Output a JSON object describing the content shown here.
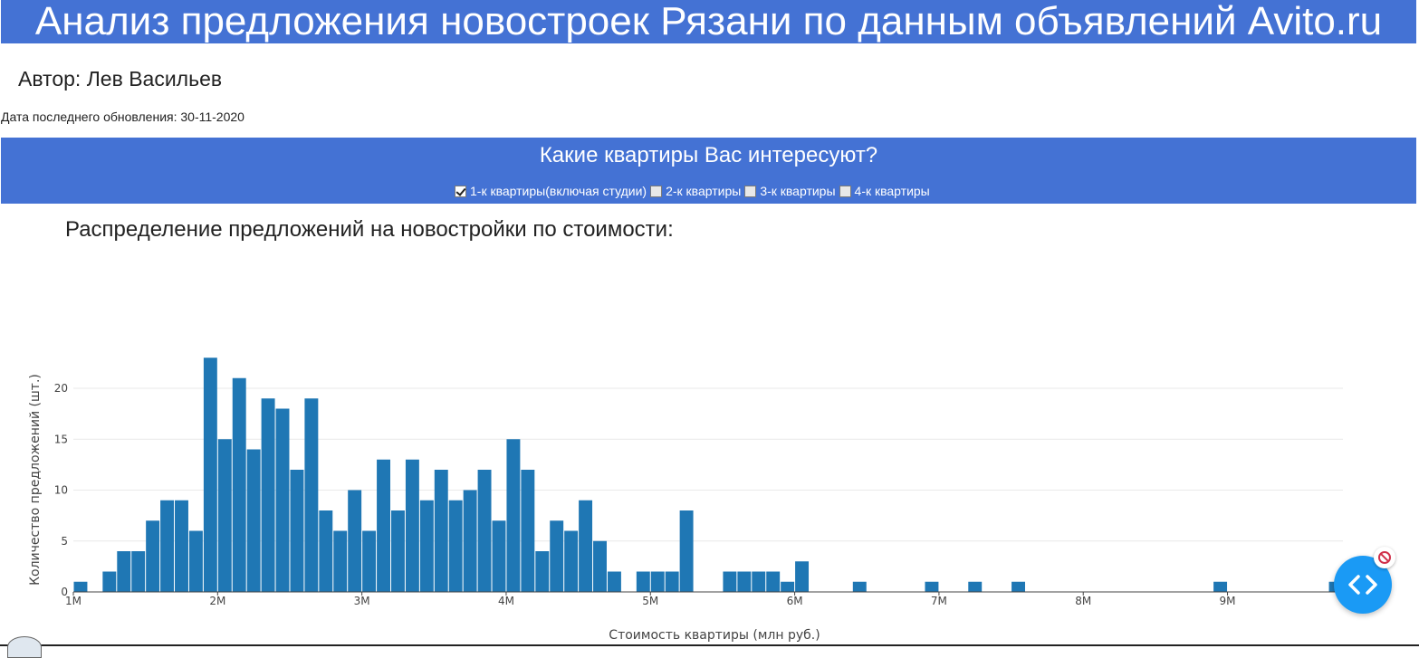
{
  "header": {
    "title": "Анализ предложения новостроек Рязани по данным объявлений Avito.ru"
  },
  "author": "Автор: Лев Васильев",
  "updated": "Дата последнего обновления: 30-11-2020",
  "filter": {
    "question": "Какие квартиры Вас интересуют?",
    "options": [
      {
        "label": "1-к квартиры(включая студии)",
        "checked": true
      },
      {
        "label": "2-к квартиры",
        "checked": false
      },
      {
        "label": "3-к квартиры",
        "checked": false
      },
      {
        "label": "4-к квартиры",
        "checked": false
      }
    ]
  },
  "section": {
    "title": "Распределение предложений на новостройки по стоимости:"
  },
  "chart_data": {
    "type": "bar",
    "xlabel": "Стоимость квартиры (млн руб.)",
    "ylabel": "Количество предложений (шт.)",
    "xlim": [
      1000000,
      9800000
    ],
    "ylim": [
      0,
      24
    ],
    "bin_width": 100000,
    "xticks": [
      {
        "value": 1000000,
        "label": "1M"
      },
      {
        "value": 2000000,
        "label": "2M"
      },
      {
        "value": 3000000,
        "label": "3M"
      },
      {
        "value": 4000000,
        "label": "4M"
      },
      {
        "value": 5000000,
        "label": "5M"
      },
      {
        "value": 6000000,
        "label": "6M"
      },
      {
        "value": 7000000,
        "label": "7M"
      },
      {
        "value": 8000000,
        "label": "8M"
      },
      {
        "value": 9000000,
        "label": "9M"
      }
    ],
    "yticks": [
      0,
      5,
      10,
      15,
      20
    ],
    "bar_color": "#1f77b4",
    "grid": true,
    "series": [
      {
        "bins": [
          {
            "x": 1000000,
            "y": 1
          },
          {
            "x": 1200000,
            "y": 2
          },
          {
            "x": 1300000,
            "y": 4
          },
          {
            "x": 1400000,
            "y": 4
          },
          {
            "x": 1500000,
            "y": 7
          },
          {
            "x": 1600000,
            "y": 9
          },
          {
            "x": 1700000,
            "y": 9
          },
          {
            "x": 1800000,
            "y": 6
          },
          {
            "x": 1900000,
            "y": 23
          },
          {
            "x": 2000000,
            "y": 15
          },
          {
            "x": 2100000,
            "y": 21
          },
          {
            "x": 2200000,
            "y": 14
          },
          {
            "x": 2300000,
            "y": 19
          },
          {
            "x": 2400000,
            "y": 18
          },
          {
            "x": 2500000,
            "y": 12
          },
          {
            "x": 2600000,
            "y": 19
          },
          {
            "x": 2700000,
            "y": 8
          },
          {
            "x": 2800000,
            "y": 6
          },
          {
            "x": 2900000,
            "y": 10
          },
          {
            "x": 3000000,
            "y": 6
          },
          {
            "x": 3100000,
            "y": 13
          },
          {
            "x": 3200000,
            "y": 8
          },
          {
            "x": 3300000,
            "y": 13
          },
          {
            "x": 3400000,
            "y": 9
          },
          {
            "x": 3500000,
            "y": 12
          },
          {
            "x": 3600000,
            "y": 9
          },
          {
            "x": 3700000,
            "y": 10
          },
          {
            "x": 3800000,
            "y": 12
          },
          {
            "x": 3900000,
            "y": 7
          },
          {
            "x": 4000000,
            "y": 15
          },
          {
            "x": 4100000,
            "y": 12
          },
          {
            "x": 4200000,
            "y": 4
          },
          {
            "x": 4300000,
            "y": 7
          },
          {
            "x": 4400000,
            "y": 6
          },
          {
            "x": 4500000,
            "y": 9
          },
          {
            "x": 4600000,
            "y": 5
          },
          {
            "x": 4700000,
            "y": 2
          },
          {
            "x": 4900000,
            "y": 2
          },
          {
            "x": 5000000,
            "y": 2
          },
          {
            "x": 5100000,
            "y": 2
          },
          {
            "x": 5200000,
            "y": 8
          },
          {
            "x": 5500000,
            "y": 2
          },
          {
            "x": 5600000,
            "y": 2
          },
          {
            "x": 5700000,
            "y": 2
          },
          {
            "x": 5800000,
            "y": 2
          },
          {
            "x": 5900000,
            "y": 1
          },
          {
            "x": 6000000,
            "y": 3
          },
          {
            "x": 6400000,
            "y": 1
          },
          {
            "x": 6900000,
            "y": 1
          },
          {
            "x": 7200000,
            "y": 1
          },
          {
            "x": 7500000,
            "y": 1
          },
          {
            "x": 8900000,
            "y": 1
          },
          {
            "x": 9700000,
            "y": 1
          }
        ]
      }
    ]
  },
  "widget": {
    "icon": "code-brackets-icon",
    "close_icon": "blocked-icon",
    "color": "#1a9af5"
  }
}
